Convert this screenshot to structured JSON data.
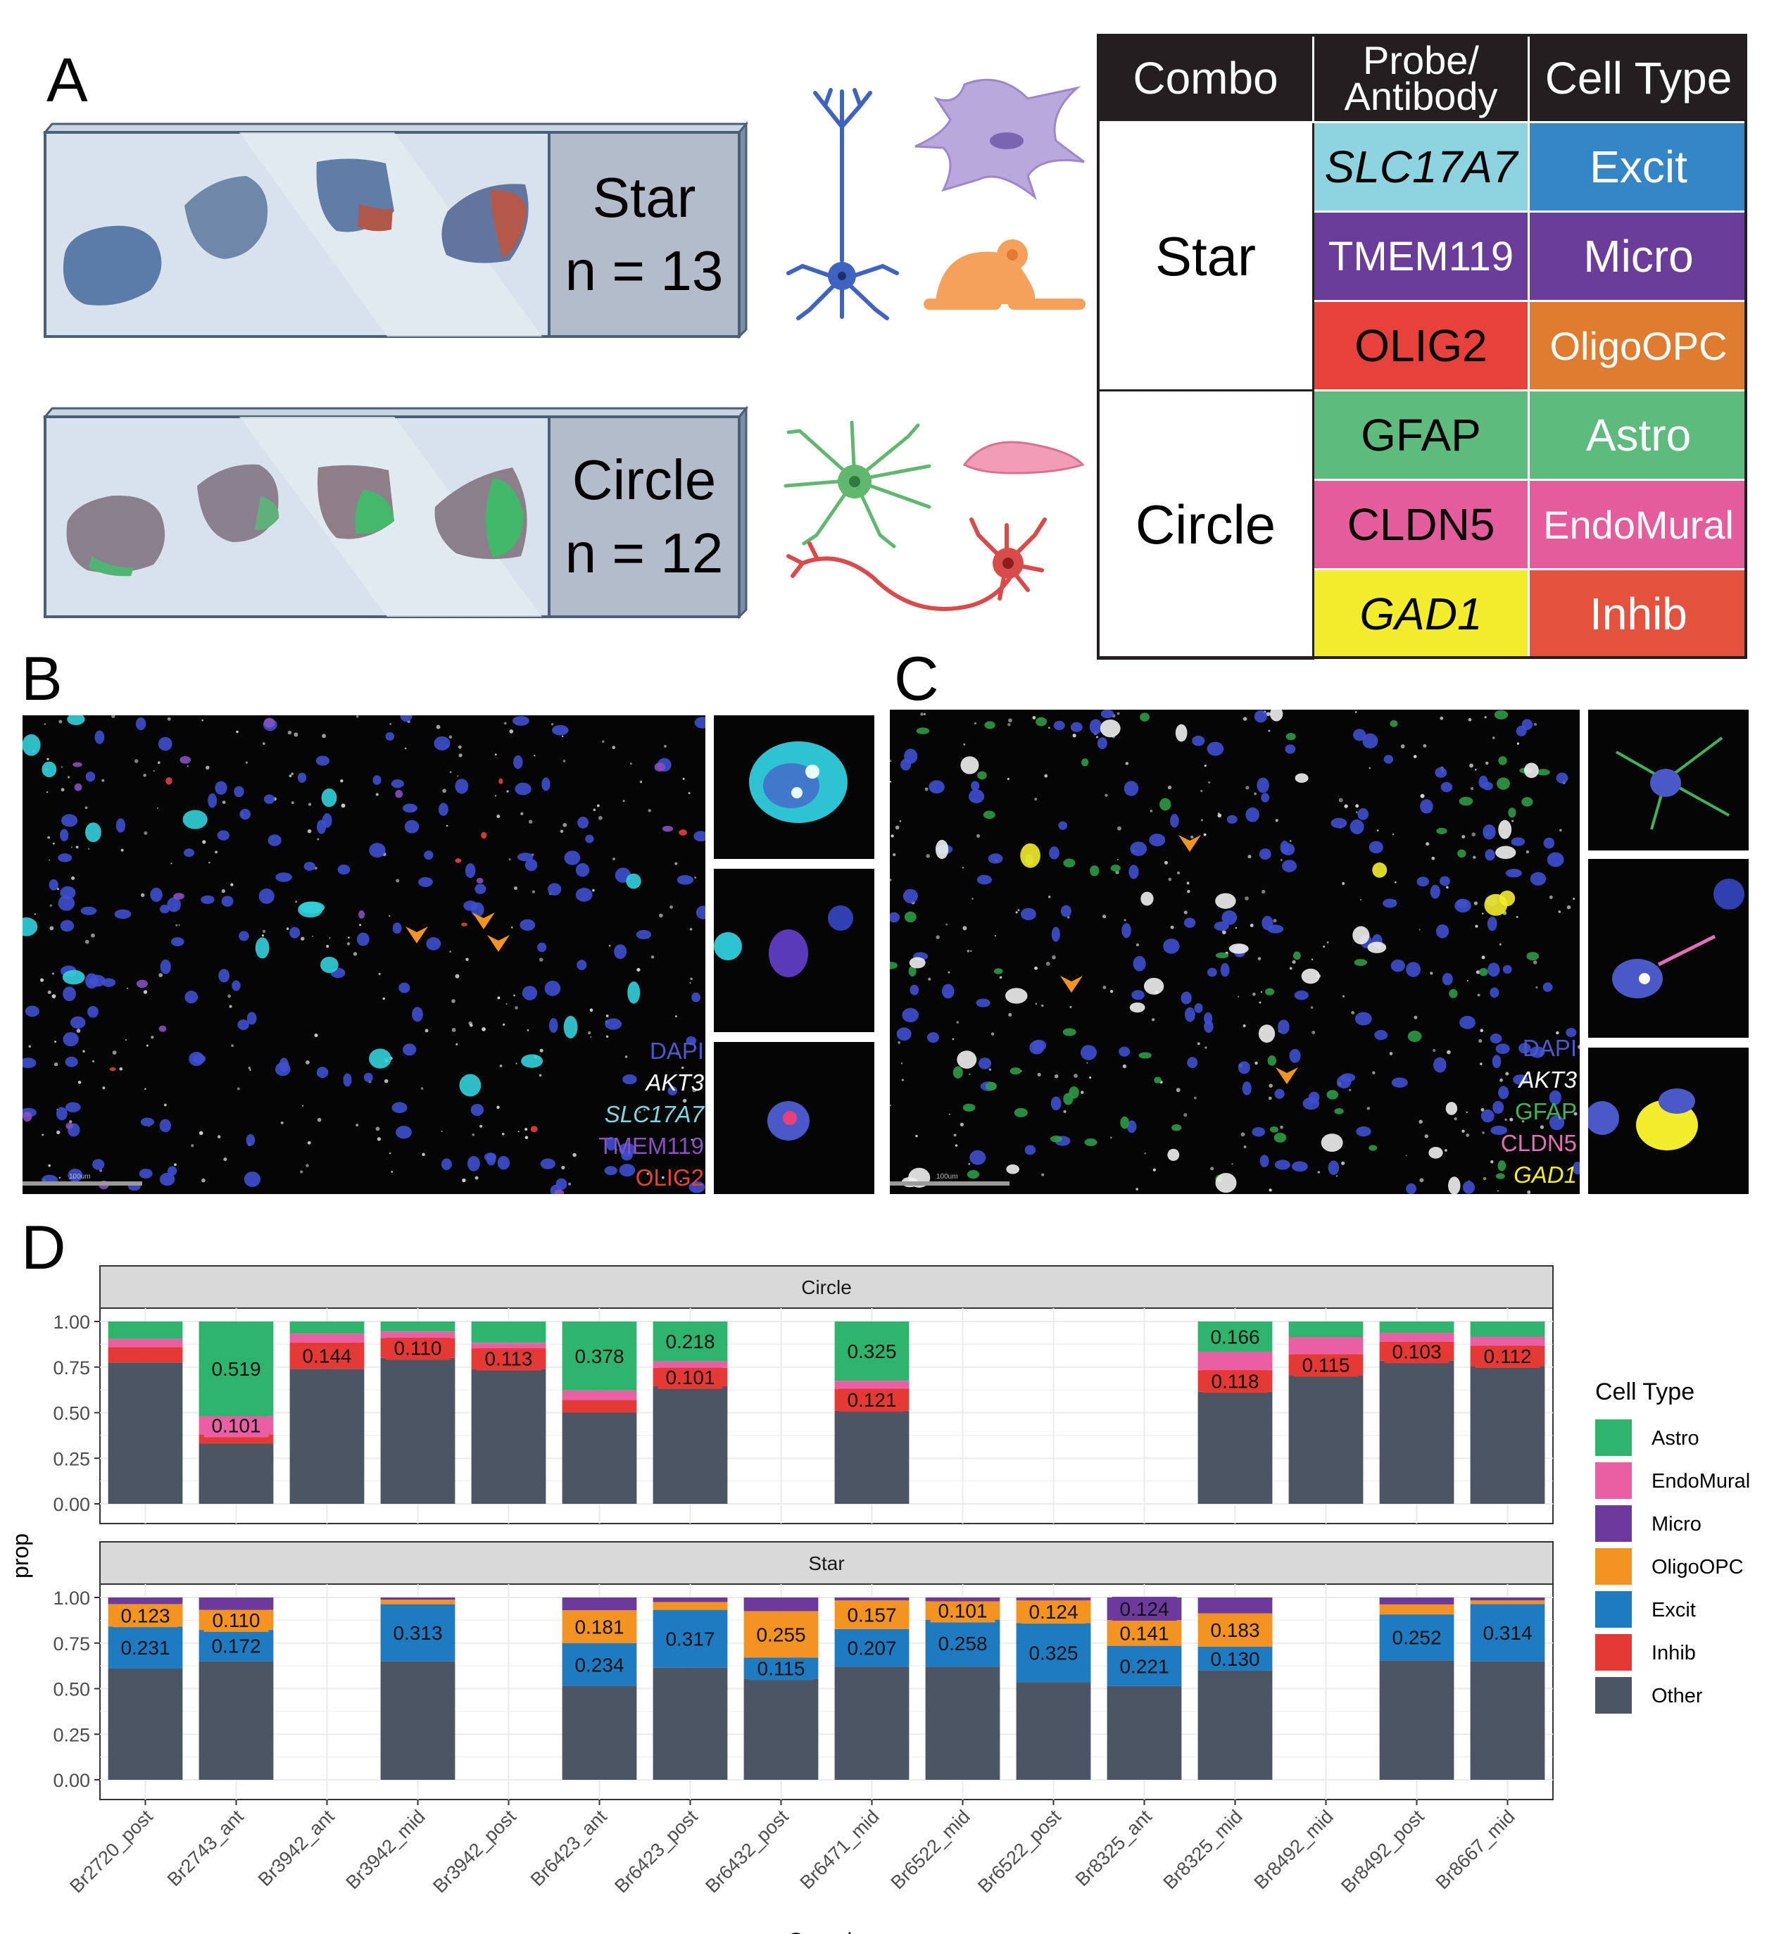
{
  "panels": {
    "a": "A",
    "b": "B",
    "c": "C",
    "d": "D"
  },
  "slides": [
    {
      "combo": "Star",
      "n": "n = 13"
    },
    {
      "combo": "Circle",
      "n": "n = 12"
    }
  ],
  "table": {
    "headers": [
      "Combo",
      "Probe/ Antibody",
      "Cell Type"
    ],
    "combos": [
      "Star",
      "Circle"
    ],
    "rows": [
      {
        "probe": "SLC17A7",
        "italic": true,
        "cell_type": "Excit",
        "probe_color": "#8ed3e0",
        "type_color": "#3586c6"
      },
      {
        "probe": "TMEM119",
        "italic": false,
        "cell_type": "Micro",
        "probe_color": "#6a3d9a",
        "type_color": "#6a3d9a"
      },
      {
        "probe": "OLIG2",
        "italic": false,
        "cell_type": "OligoOPC",
        "probe_color": "#e8403a",
        "type_color": "#e07c2f"
      },
      {
        "probe": "GFAP",
        "italic": false,
        "cell_type": "Astro",
        "probe_color": "#5dbb7d",
        "type_color": "#5dbb7d"
      },
      {
        "probe": "CLDN5",
        "italic": false,
        "cell_type": "EndoMural",
        "probe_color": "#e45c9b",
        "type_color": "#e45c9b"
      },
      {
        "probe": "GAD1",
        "italic": true,
        "cell_type": "Inhib",
        "probe_color": "#f3ec2c",
        "type_color": "#e4523d"
      }
    ]
  },
  "panel_b_legend": [
    {
      "label": "DAPI",
      "color": "#4a58c8",
      "italic": false
    },
    {
      "label": "AKT3",
      "color": "#ffffff",
      "italic": true
    },
    {
      "label": "SLC17A7",
      "color": "#7fd7e6",
      "italic": true
    },
    {
      "label": "TMEM119",
      "color": "#8a4fc0",
      "italic": false
    },
    {
      "label": "OLIG2",
      "color": "#e8403a",
      "italic": false
    }
  ],
  "panel_c_legend": [
    {
      "label": "DAPI",
      "color": "#4a58c8",
      "italic": false
    },
    {
      "label": "AKT3",
      "color": "#ffffff",
      "italic": true
    },
    {
      "label": "GFAP",
      "color": "#3fb35a",
      "italic": false
    },
    {
      "label": "CLDN5",
      "color": "#e070b8",
      "italic": false
    },
    {
      "label": "GAD1",
      "color": "#f3ec2c",
      "italic": true
    }
  ],
  "scale_bar_label": "100um",
  "colors": {
    "Astro": "#2fb46e",
    "EndoMural": "#ea5fa3",
    "Micro": "#6b3a9c",
    "OligoOPC": "#f39321",
    "Excit": "#1f7bc1",
    "Inhib": "#e53935",
    "Other": "#4b5563"
  },
  "chart_data": {
    "type": "bar",
    "stacked": true,
    "ylabel": "prop",
    "xlabel": "Sample",
    "yticks": [
      "0.00",
      "0.25",
      "0.50",
      "0.75",
      "1.00"
    ],
    "ylim": [
      0,
      1
    ],
    "grid": true,
    "legend_title": "Cell Type",
    "legend_position": "right",
    "legend": [
      "Astro",
      "EndoMural",
      "Micro",
      "OligoOPC",
      "Excit",
      "Inhib",
      "Other"
    ],
    "categories": [
      "Br2720_post",
      "Br2743_ant",
      "Br3942_ant",
      "Br3942_mid",
      "Br3942_post",
      "Br6423_ant",
      "Br6423_post",
      "Br6432_post",
      "Br6471_mid",
      "Br6522_mid",
      "Br6522_post",
      "Br8325_ant",
      "Br8325_mid",
      "Br8492_mid",
      "Br8492_post",
      "Br8667_mid"
    ],
    "facets": [
      {
        "name": "Circle",
        "stack_order": [
          "Other",
          "Inhib",
          "EndoMural",
          "Astro"
        ],
        "bars": [
          {
            "sample": "Br2720_post",
            "Other": 0.775,
            "Inhib": 0.085,
            "EndoMural": 0.045,
            "Astro": 0.095,
            "labels": {}
          },
          {
            "sample": "Br2743_ant",
            "Other": 0.33,
            "Inhib": 0.05,
            "EndoMural": 0.101,
            "Astro": 0.519,
            "labels": {
              "EndoMural": "0.101",
              "Astro": "0.519"
            }
          },
          {
            "sample": "Br3942_ant",
            "Other": 0.74,
            "Inhib": 0.144,
            "EndoMural": 0.05,
            "Astro": 0.066,
            "labels": {
              "Inhib": "0.144"
            }
          },
          {
            "sample": "Br3942_mid",
            "Other": 0.8,
            "Inhib": 0.11,
            "EndoMural": 0.035,
            "Astro": 0.055,
            "labels": {
              "Inhib": "0.110"
            }
          },
          {
            "sample": "Br3942_post",
            "Other": 0.74,
            "Inhib": 0.113,
            "EndoMural": 0.03,
            "Astro": 0.117,
            "labels": {
              "Inhib": "0.113"
            }
          },
          {
            "sample": "Br6423_ant",
            "Other": 0.5,
            "Inhib": 0.07,
            "EndoMural": 0.052,
            "Astro": 0.378,
            "labels": {
              "Astro": "0.378"
            }
          },
          {
            "sample": "Br6423_post",
            "Other": 0.645,
            "Inhib": 0.101,
            "EndoMural": 0.036,
            "Astro": 0.218,
            "labels": {
              "Inhib": "0.101",
              "Astro": "0.218"
            }
          },
          {
            "sample": "Br6432_post",
            "empty": true
          },
          {
            "sample": "Br6471_mid",
            "Other": 0.51,
            "Inhib": 0.121,
            "EndoMural": 0.044,
            "Astro": 0.325,
            "labels": {
              "Inhib": "0.121",
              "Astro": "0.325"
            }
          },
          {
            "sample": "Br6522_mid",
            "empty": true
          },
          {
            "sample": "Br6522_post",
            "empty": true
          },
          {
            "sample": "Br8325_ant",
            "empty": true
          },
          {
            "sample": "Br8325_mid",
            "Other": 0.615,
            "Inhib": 0.118,
            "EndoMural": 0.101,
            "Astro": 0.166,
            "labels": {
              "Inhib": "0.118",
              "Astro": "0.166"
            }
          },
          {
            "sample": "Br8492_mid",
            "Other": 0.705,
            "Inhib": 0.115,
            "EndoMural": 0.095,
            "Astro": 0.085,
            "labels": {
              "Inhib": "0.115"
            }
          },
          {
            "sample": "Br8492_post",
            "Other": 0.785,
            "Inhib": 0.103,
            "EndoMural": 0.05,
            "Astro": 0.062,
            "labels": {
              "Inhib": "0.103"
            }
          },
          {
            "sample": "Br8667_mid",
            "Other": 0.755,
            "Inhib": 0.112,
            "EndoMural": 0.05,
            "Astro": 0.083,
            "labels": {
              "Inhib": "0.112"
            }
          }
        ]
      },
      {
        "name": "Star",
        "stack_order": [
          "Other",
          "Excit",
          "OligoOPC",
          "Micro"
        ],
        "bars": [
          {
            "sample": "Br2720_post",
            "Other": 0.61,
            "Excit": 0.231,
            "OligoOPC": 0.123,
            "Micro": 0.036,
            "labels": {
              "Excit": "0.231",
              "OligoOPC": "0.123"
            }
          },
          {
            "sample": "Br2743_ant",
            "Other": 0.65,
            "Excit": 0.172,
            "OligoOPC": 0.11,
            "Micro": 0.068,
            "labels": {
              "Excit": "0.172",
              "OligoOPC": "0.110"
            }
          },
          {
            "sample": "Br3942_ant",
            "empty": true
          },
          {
            "sample": "Br3942_mid",
            "Other": 0.65,
            "Excit": 0.313,
            "OligoOPC": 0.025,
            "Micro": 0.012,
            "labels": {
              "Excit": "0.313"
            }
          },
          {
            "sample": "Br3942_post",
            "empty": true
          },
          {
            "sample": "Br6423_ant",
            "Other": 0.515,
            "Excit": 0.234,
            "OligoOPC": 0.181,
            "Micro": 0.07,
            "labels": {
              "Excit": "0.234",
              "OligoOPC": "0.181"
            }
          },
          {
            "sample": "Br6423_post",
            "Other": 0.615,
            "Excit": 0.317,
            "OligoOPC": 0.043,
            "Micro": 0.025,
            "labels": {
              "Excit": "0.317"
            }
          },
          {
            "sample": "Br6432_post",
            "Other": 0.555,
            "Excit": 0.115,
            "OligoOPC": 0.255,
            "Micro": 0.075,
            "labels": {
              "Excit": "0.115",
              "OligoOPC": "0.255"
            }
          },
          {
            "sample": "Br6471_mid",
            "Other": 0.62,
            "Excit": 0.207,
            "OligoOPC": 0.157,
            "Micro": 0.016,
            "labels": {
              "Excit": "0.207",
              "OligoOPC": "0.157"
            }
          },
          {
            "sample": "Br6522_mid",
            "Other": 0.62,
            "Excit": 0.258,
            "OligoOPC": 0.101,
            "Micro": 0.021,
            "labels": {
              "Excit": "0.258",
              "OligoOPC": "0.101"
            }
          },
          {
            "sample": "Br6522_post",
            "Other": 0.535,
            "Excit": 0.325,
            "OligoOPC": 0.124,
            "Micro": 0.016,
            "labels": {
              "Excit": "0.325",
              "OligoOPC": "0.124"
            }
          },
          {
            "sample": "Br8325_ant",
            "Other": 0.514,
            "Excit": 0.221,
            "OligoOPC": 0.141,
            "Micro": 0.124,
            "labels": {
              "Excit": "0.221",
              "OligoOPC": "0.141",
              "Micro": "0.124"
            }
          },
          {
            "sample": "Br8325_mid",
            "Other": 0.6,
            "Excit": 0.13,
            "OligoOPC": 0.183,
            "Micro": 0.087,
            "labels": {
              "Excit": "0.130",
              "OligoOPC": "0.183"
            }
          },
          {
            "sample": "Br8492_mid",
            "empty": true
          },
          {
            "sample": "Br8492_post",
            "Other": 0.655,
            "Excit": 0.252,
            "OligoOPC": 0.055,
            "Micro": 0.038,
            "labels": {
              "Excit": "0.252"
            }
          },
          {
            "sample": "Br8667_mid",
            "Other": 0.65,
            "Excit": 0.314,
            "OligoOPC": 0.02,
            "Micro": 0.016,
            "labels": {
              "Excit": "0.314"
            }
          }
        ]
      }
    ]
  }
}
